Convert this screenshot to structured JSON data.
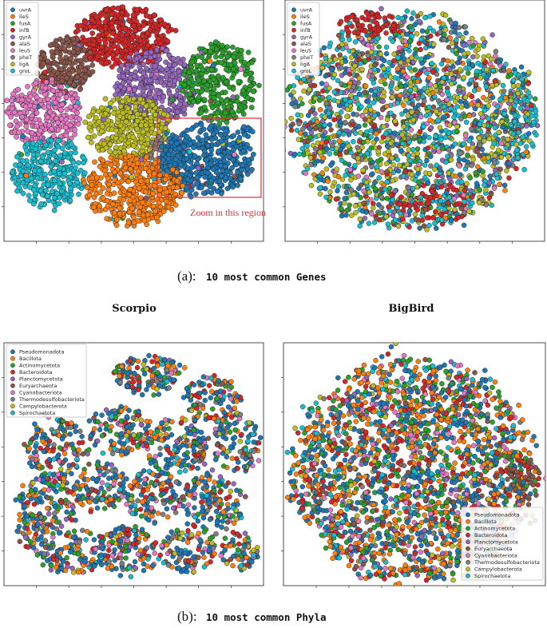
{
  "captions": {
    "a_prefix": "(a):",
    "a_text": "10 most common Genes",
    "b_prefix": "(b):",
    "b_text": "10 most common Phyla"
  },
  "model_labels": {
    "left": "Scorpio",
    "right": "BigBird"
  },
  "annotation": {
    "zoom_text": "Zoom in this region",
    "color": "#e0303a"
  },
  "palette": [
    "#1f77b4",
    "#ff7f0e",
    "#2ca02c",
    "#d62728",
    "#9467bd",
    "#8c564b",
    "#e377c2",
    "#7f7f7f",
    "#bcbd22",
    "#17becf"
  ],
  "chart_data": [
    {
      "type": "scatter",
      "panel": "top-left",
      "legend": [
        "uvrA",
        "ileS",
        "fusA",
        "infB",
        "gyrA",
        "alaS",
        "leuS",
        "pheT",
        "ligA",
        "groL"
      ],
      "legend_placement": "top-left",
      "grid": false
    },
    {
      "type": "scatter",
      "panel": "top-right",
      "legend": [
        "uvrA",
        "ileS",
        "fusA",
        "infB",
        "gyrA",
        "alaS",
        "leuS",
        "pheT",
        "ligA",
        "groL"
      ],
      "legend_placement": "top-left",
      "grid": false
    },
    {
      "type": "scatter",
      "panel": "bottom-left",
      "legend": [
        "Pseudomonadota",
        "Bacillota",
        "Actinomycetota",
        "Bacteroidota",
        "Planctomycetota",
        "Euryarchaeota",
        "Cyanobacteriota",
        "Thermodesulfobacteriota",
        "Campylobacterota",
        "Spirochaetota"
      ],
      "legend_placement": "top-left",
      "grid": false
    },
    {
      "type": "scatter",
      "panel": "bottom-right",
      "legend": [
        "Pseudomonadota",
        "Bacillota",
        "Actinomycetota",
        "Bacteroidota",
        "Planctomycetota",
        "Euryarchaeota",
        "Cyanobacteriota",
        "Thermodesulfobacteriota",
        "Campylobacterota",
        "Spirochaetota"
      ],
      "legend_placement": "bottom-right",
      "grid": false
    }
  ]
}
